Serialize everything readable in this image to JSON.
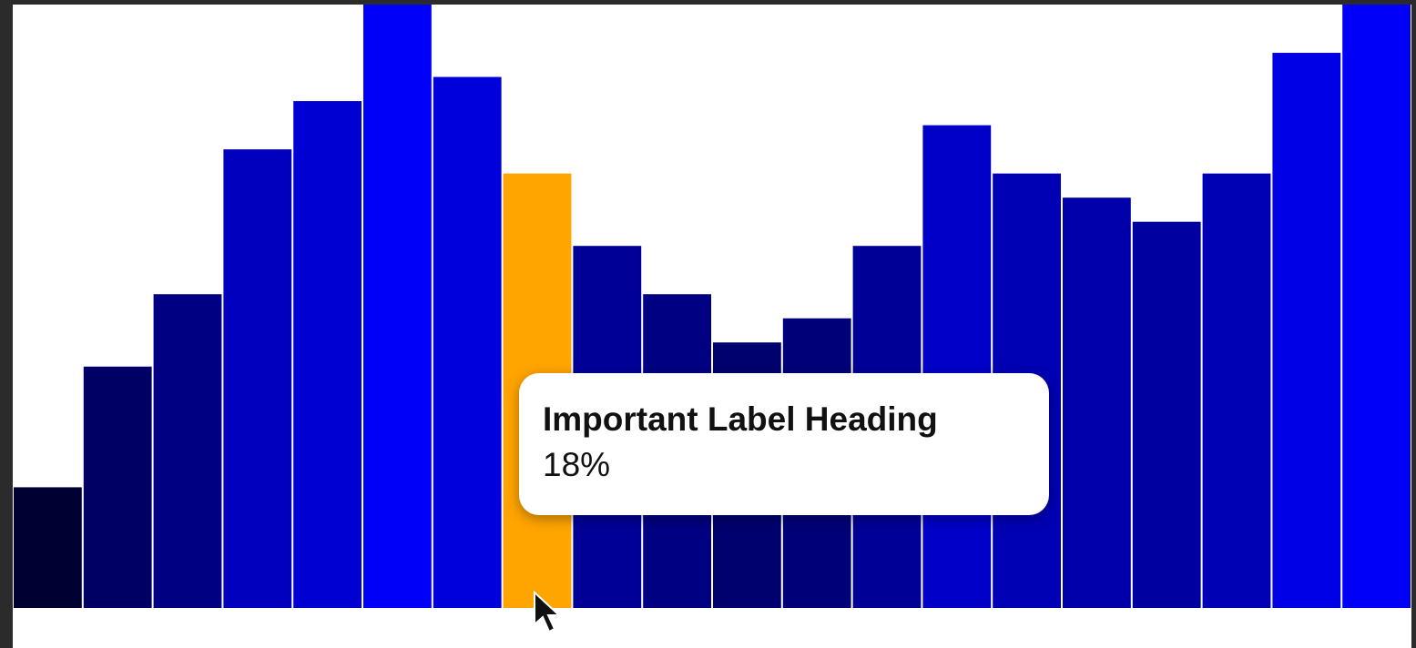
{
  "chart_data": {
    "type": "bar",
    "values": [
      5,
      10,
      13,
      19,
      21,
      25,
      22,
      18,
      15,
      13,
      11,
      12,
      15,
      20,
      18,
      17,
      16,
      18,
      23,
      25
    ],
    "value_labels": [
      null,
      null,
      null,
      null,
      null,
      null,
      null,
      "18%",
      null,
      null,
      null,
      null,
      null,
      null,
      null,
      null,
      null,
      null,
      null,
      null
    ],
    "colors": [
      "#000032",
      "#000064",
      "#000082",
      "#0000be",
      "#0000d2",
      "#0000fa",
      "#0000dc",
      "#ffa500",
      "#000096",
      "#000082",
      "#00006e",
      "#000078",
      "#000096",
      "#0000c8",
      "#0000b4",
      "#0000aa",
      "#0000a0",
      "#0000b4",
      "#0000e6",
      "#0000fa"
    ],
    "ylim": [
      0,
      25
    ],
    "tooltip_heading": "Important Label Heading"
  }
}
